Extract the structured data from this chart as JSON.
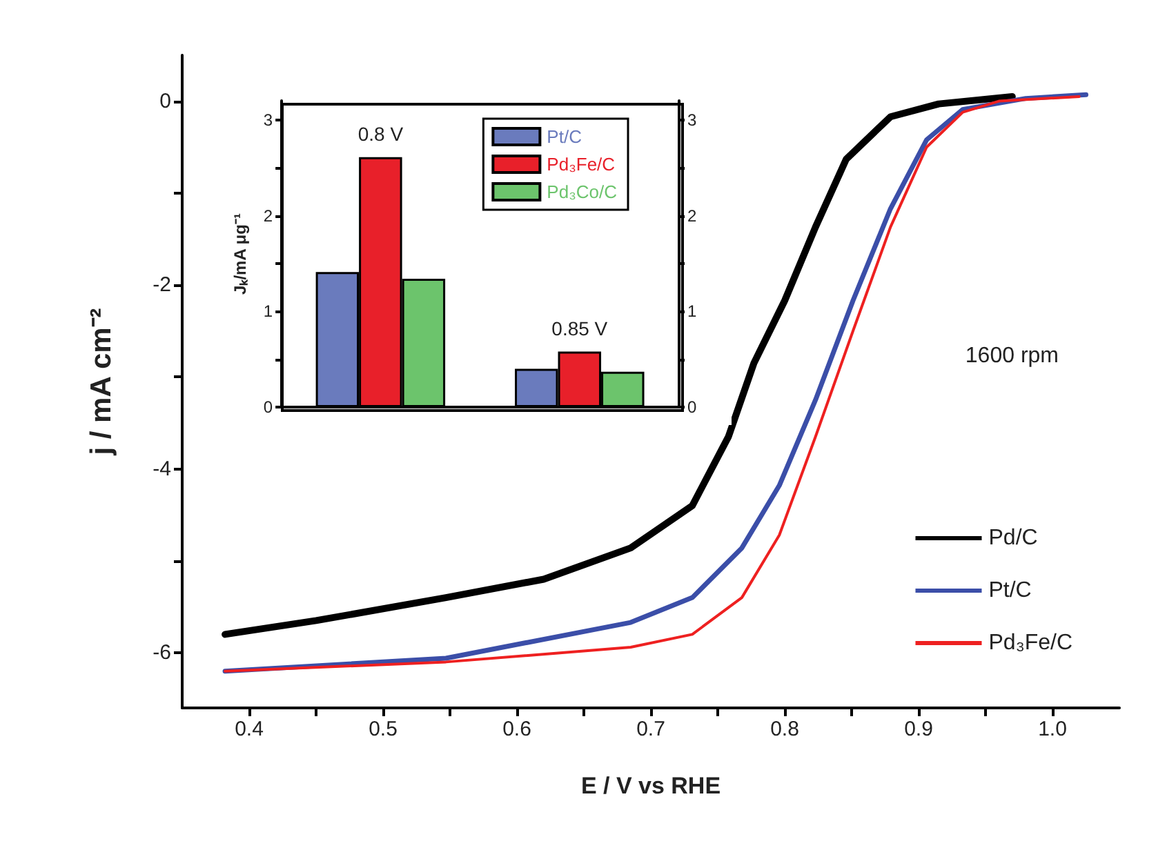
{
  "chart_data": [
    {
      "type": "line",
      "xlabel": "E / V vs RHE",
      "ylabel": "j / mA cm⁻²",
      "annotations": [
        "1600 rpm"
      ],
      "marker": "none",
      "legend": "bottom right",
      "xlim": [
        0.35,
        1.05
      ],
      "ylim": [
        -6.6,
        0.5
      ],
      "xticks": [
        0.4,
        {
          "value": 0.45,
          "label": null
        },
        0.5,
        {
          "value": 0.55,
          "label": null
        },
        0.6,
        {
          "value": 0.65,
          "label": null
        },
        0.7,
        {
          "value": 0.75,
          "label": null
        },
        0.8,
        {
          "value": 0.85,
          "label": null
        },
        0.9,
        {
          "value": 0.95,
          "label": null
        },
        {
          "value": 1,
          "label": "1.0"
        }
      ],
      "yticks": [
        -6,
        {
          "value": -5,
          "label": null
        },
        -4,
        {
          "value": -3,
          "label": null
        },
        -2,
        {
          "value": -1,
          "label": null
        },
        0
      ],
      "series": [
        {
          "name": "Pd/C",
          "color": "#000000",
          "x": [
            0.382,
            0.45,
            0.547,
            0.62,
            0.685,
            0.731,
            0.758,
            0.777,
            0.8,
            0.823,
            0.846,
            0.879,
            0.915,
            0.97
          ],
          "values": [
            -5.8,
            -5.65,
            -5.4,
            -5.2,
            -4.86,
            -4.4,
            -3.65,
            -2.85,
            -2.17,
            -1.37,
            -0.63,
            -0.17,
            -0.03,
            0.05
          ]
        },
        {
          "name": "Pt/C",
          "color": "#3b4ea8",
          "x": [
            0.382,
            0.547,
            0.685,
            0.731,
            0.768,
            0.796,
            0.823,
            0.851,
            0.879,
            0.906,
            0.933,
            0.98,
            1.025
          ],
          "values": [
            -6.2,
            -6.06,
            -5.67,
            -5.4,
            -4.86,
            -4.18,
            -3.25,
            -2.17,
            -1.17,
            -0.42,
            -0.09,
            0.03,
            0.07
          ]
        },
        {
          "name": "Pd₃Fe/C",
          "color": "#ee2020",
          "x": [
            0.382,
            0.547,
            0.685,
            0.731,
            0.768,
            0.796,
            0.823,
            0.851,
            0.879,
            0.906,
            0.933,
            0.96,
            1.02
          ],
          "values": [
            -6.2,
            -6.1,
            -5.94,
            -5.8,
            -5.4,
            -4.72,
            -3.65,
            -2.5,
            -1.37,
            -0.5,
            -0.12,
            0.0,
            0.05
          ]
        }
      ]
    },
    {
      "type": "bar",
      "ylabel": "Jₖ/mA μg⁻¹",
      "legend": "top right",
      "categories": [
        "0.8 V",
        "0.85 V"
      ],
      "ylim": [
        0,
        3.2
      ],
      "yticks": [
        0,
        {
          "value": 0.5,
          "label": null
        },
        1,
        {
          "value": 1.5,
          "label": null
        },
        2,
        {
          "value": 2.5,
          "label": null
        },
        3
      ],
      "y2lim": [
        0,
        3.2
      ],
      "y2ticks": [
        0,
        {
          "value": 0.5,
          "label": null
        },
        1,
        {
          "value": 1.5,
          "label": null
        },
        2,
        {
          "value": 2.5,
          "label": null
        },
        3
      ],
      "series": [
        {
          "name": "Pt/C",
          "color": "#6a7bbd",
          "values": [
            1.41,
            0.4
          ]
        },
        {
          "name": "Pd₃Fe/C",
          "color": "#e8202a",
          "values": [
            2.61,
            0.58
          ]
        },
        {
          "name": "Pd₃Co/C",
          "color": "#6cc46c",
          "values": [
            1.34,
            0.37
          ]
        }
      ]
    }
  ]
}
